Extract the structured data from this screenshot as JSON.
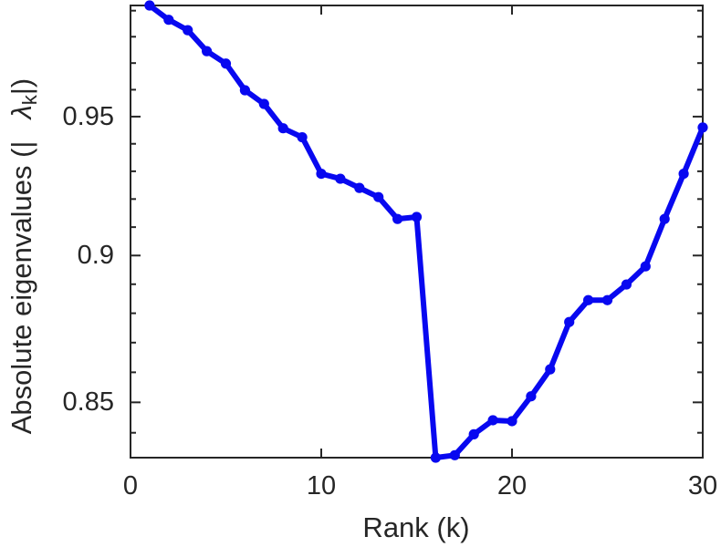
{
  "chart_data": {
    "type": "line",
    "title": "",
    "xlabel": "Rank (k)",
    "ylabel": "Absolute eigenvalues (| λ_k|)",
    "ylabel_parts": {
      "prefix": "Absolute eigenvalues (|",
      "symbol": "λ",
      "subscript": "k",
      "suffix": "|)"
    },
    "x": [
      1,
      2,
      3,
      4,
      5,
      6,
      7,
      8,
      9,
      10,
      11,
      12,
      13,
      14,
      15,
      16,
      17,
      18,
      19,
      20,
      21,
      22,
      23,
      24,
      25,
      26,
      27,
      28,
      29,
      30
    ],
    "y": [
      0.992,
      0.9865,
      0.9825,
      0.9745,
      0.9698,
      0.9598,
      0.9547,
      0.9457,
      0.9424,
      0.9291,
      0.9273,
      0.924,
      0.9207,
      0.9129,
      0.9136,
      0.8319,
      0.8327,
      0.8395,
      0.8441,
      0.8438,
      0.852,
      0.861,
      0.877,
      0.8845,
      0.8845,
      0.8899,
      0.8962,
      0.9129,
      0.9291,
      0.946
    ],
    "xlim": [
      0,
      30
    ],
    "ylim": [
      0.8319,
      0.992
    ],
    "yscale": "log",
    "xticks": [
      0,
      10,
      20,
      30
    ],
    "xtick_labels": [
      "0",
      "10",
      "20",
      "30"
    ],
    "yticks": [
      {
        "value": 0.95,
        "label": "0.95"
      },
      {
        "value": 0.9,
        "label": "0.9"
      },
      {
        "value": 0.85,
        "label": "0.85"
      }
    ],
    "y_minor_step": 0.01,
    "grid": false,
    "legend": null,
    "line_color": "#0808f0",
    "axis_color": "#262626",
    "marker": "circle"
  }
}
